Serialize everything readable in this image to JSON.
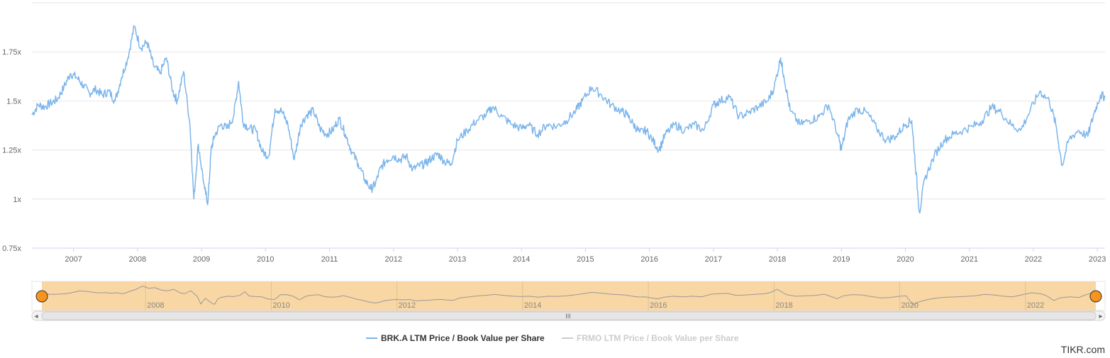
{
  "chart_data": {
    "type": "line",
    "title": "",
    "xlabel": "",
    "ylabel": "",
    "y_unit_suffix": "x",
    "ylim": [
      0.75,
      2.0
    ],
    "xlim": [
      2006.35,
      2023.12
    ],
    "yticks": [
      {
        "value": 0.75,
        "label": "0.75x"
      },
      {
        "value": 1.0,
        "label": "1x"
      },
      {
        "value": 1.25,
        "label": "1.25x"
      },
      {
        "value": 1.5,
        "label": "1.5x"
      },
      {
        "value": 1.75,
        "label": "1.75x"
      }
    ],
    "xticks": [
      "2007",
      "2008",
      "2009",
      "2010",
      "2011",
      "2012",
      "2013",
      "2014",
      "2015",
      "2016",
      "2017",
      "2018",
      "2019",
      "2020",
      "2021",
      "2022",
      "2023"
    ],
    "grid": true,
    "legend_position": "bottom",
    "series": [
      {
        "name": "BRK.A LTM Price / Book Value per Share",
        "color": "#7cb5ec",
        "visible": true,
        "x": [
          2006.35,
          2006.45,
          2006.55,
          2006.65,
          2006.75,
          2006.85,
          2006.95,
          2007.05,
          2007.15,
          2007.25,
          2007.35,
          2007.45,
          2007.55,
          2007.65,
          2007.75,
          2007.85,
          2007.95,
          2008.05,
          2008.15,
          2008.25,
          2008.35,
          2008.45,
          2008.55,
          2008.62,
          2008.72,
          2008.82,
          2008.88,
          2008.95,
          2009.05,
          2009.1,
          2009.15,
          2009.2,
          2009.3,
          2009.4,
          2009.5,
          2009.58,
          2009.65,
          2009.75,
          2009.85,
          2009.95,
          2010.05,
          2010.15,
          2010.25,
          2010.35,
          2010.45,
          2010.55,
          2010.65,
          2010.75,
          2010.85,
          2010.95,
          2011.05,
          2011.15,
          2011.25,
          2011.35,
          2011.45,
          2011.55,
          2011.65,
          2011.72,
          2011.8,
          2011.9,
          2012.0,
          2012.1,
          2012.2,
          2012.3,
          2012.4,
          2012.5,
          2012.6,
          2012.7,
          2012.8,
          2012.9,
          2013.0,
          2013.15,
          2013.3,
          2013.45,
          2013.55,
          2013.7,
          2013.85,
          2014.0,
          2014.1,
          2014.25,
          2014.4,
          2014.55,
          2014.7,
          2014.85,
          2014.95,
          2015.1,
          2015.25,
          2015.4,
          2015.55,
          2015.65,
          2015.75,
          2015.85,
          2015.95,
          2016.05,
          2016.15,
          2016.25,
          2016.4,
          2016.55,
          2016.7,
          2016.85,
          2017.0,
          2017.1,
          2017.25,
          2017.4,
          2017.55,
          2017.7,
          2017.85,
          2017.95,
          2018.05,
          2018.1,
          2018.2,
          2018.35,
          2018.5,
          2018.65,
          2018.8,
          2018.95,
          2019.0,
          2019.1,
          2019.25,
          2019.4,
          2019.55,
          2019.7,
          2019.85,
          2020.0,
          2020.1,
          2020.15,
          2020.22,
          2020.3,
          2020.45,
          2020.6,
          2020.75,
          2020.9,
          2021.05,
          2021.2,
          2021.35,
          2021.5,
          2021.65,
          2021.8,
          2021.95,
          2022.1,
          2022.25,
          2022.35,
          2022.45,
          2022.55,
          2022.7,
          2022.85,
          2022.95,
          2023.05,
          2023.12
        ],
        "values": [
          1.43,
          1.48,
          1.47,
          1.49,
          1.51,
          1.57,
          1.64,
          1.62,
          1.58,
          1.54,
          1.56,
          1.53,
          1.55,
          1.5,
          1.62,
          1.72,
          1.88,
          1.77,
          1.8,
          1.68,
          1.64,
          1.72,
          1.55,
          1.5,
          1.65,
          1.38,
          1.0,
          1.28,
          1.05,
          0.98,
          1.25,
          1.32,
          1.38,
          1.36,
          1.42,
          1.6,
          1.39,
          1.36,
          1.35,
          1.24,
          1.22,
          1.46,
          1.45,
          1.38,
          1.2,
          1.38,
          1.43,
          1.45,
          1.36,
          1.33,
          1.35,
          1.41,
          1.33,
          1.24,
          1.18,
          1.1,
          1.05,
          1.08,
          1.16,
          1.2,
          1.22,
          1.2,
          1.22,
          1.15,
          1.17,
          1.18,
          1.21,
          1.23,
          1.19,
          1.18,
          1.3,
          1.35,
          1.4,
          1.43,
          1.47,
          1.42,
          1.38,
          1.36,
          1.38,
          1.33,
          1.38,
          1.37,
          1.4,
          1.45,
          1.5,
          1.57,
          1.53,
          1.48,
          1.45,
          1.43,
          1.38,
          1.34,
          1.35,
          1.3,
          1.25,
          1.33,
          1.38,
          1.35,
          1.38,
          1.35,
          1.48,
          1.5,
          1.52,
          1.42,
          1.44,
          1.47,
          1.5,
          1.57,
          1.72,
          1.63,
          1.45,
          1.38,
          1.4,
          1.42,
          1.48,
          1.32,
          1.25,
          1.4,
          1.46,
          1.44,
          1.36,
          1.3,
          1.32,
          1.38,
          1.4,
          1.2,
          0.93,
          1.1,
          1.22,
          1.3,
          1.33,
          1.35,
          1.37,
          1.4,
          1.47,
          1.44,
          1.38,
          1.35,
          1.45,
          1.55,
          1.5,
          1.38,
          1.17,
          1.3,
          1.35,
          1.32,
          1.44,
          1.53,
          1.52
        ]
      },
      {
        "name": "FRMO LTM Price / Book Value per Share",
        "color": "#cccccc",
        "visible": false,
        "x": [],
        "values": []
      }
    ]
  },
  "navigator": {
    "tick_labels": [
      "2008",
      "2010",
      "2012",
      "2014",
      "2016",
      "2018",
      "2020",
      "2022"
    ],
    "scrollbar_grip": "III",
    "left_arrow": "◂",
    "right_arrow": "▸"
  },
  "colors": {
    "series_line": "#7cb5ec",
    "navigator_fill": "#f8d5a0",
    "handle": "#f7931e",
    "grid": "#e6e6e6"
  },
  "credit": "TIKR.com"
}
